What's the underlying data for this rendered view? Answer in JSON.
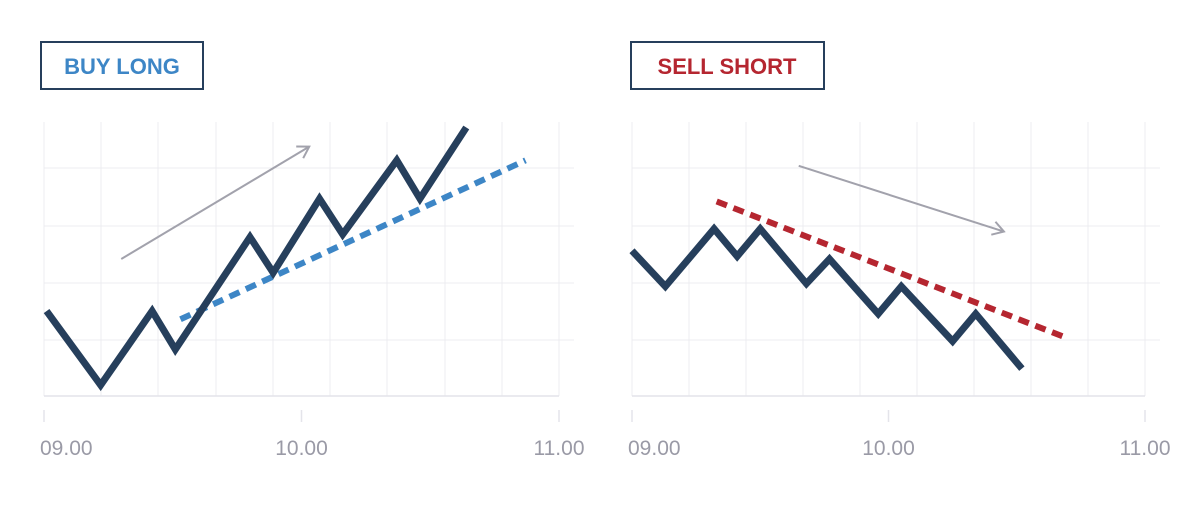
{
  "colors": {
    "price_line": "#263f5c",
    "grid": "#ececf0",
    "axis": "#e4e4ea",
    "tick_text": "#9a9aa6",
    "arrow": "#a2a2ac",
    "box_border": "#263f5c",
    "buy": "#3d86c6",
    "sell": "#b52630"
  },
  "chart_data": [
    {
      "type": "line",
      "title": "BUY LONG",
      "title_color": "#3d86c6",
      "x_ticks": [
        "09.00",
        "10.00",
        "11.00"
      ],
      "xlim": [
        0,
        2
      ],
      "ylim": [
        0,
        1
      ],
      "grid": true,
      "series": [
        {
          "role": "price",
          "color": "#263f5c",
          "style": "solid",
          "points": [
            [
              0.01,
              0.31
            ],
            [
              0.22,
              0.04
            ],
            [
              0.42,
              0.31
            ],
            [
              0.51,
              0.17
            ],
            [
              0.8,
              0.58
            ],
            [
              0.89,
              0.45
            ],
            [
              1.07,
              0.72
            ],
            [
              1.16,
              0.59
            ],
            [
              1.37,
              0.86
            ],
            [
              1.46,
              0.72
            ],
            [
              1.64,
              0.98
            ]
          ]
        },
        {
          "role": "trendline",
          "color": "#3d86c6",
          "style": "dashed",
          "points": [
            [
              0.53,
              0.28
            ],
            [
              1.87,
              0.86
            ]
          ]
        }
      ],
      "arrow": {
        "direction": "up",
        "from": [
          0.3,
          0.5
        ],
        "to": [
          1.03,
          0.91
        ]
      }
    },
    {
      "type": "line",
      "title": "SELL SHORT",
      "title_color": "#b52630",
      "x_ticks": [
        "09.00",
        "10.00",
        "11.00"
      ],
      "xlim": [
        0,
        2
      ],
      "ylim": [
        0,
        1
      ],
      "grid": true,
      "series": [
        {
          "role": "price",
          "color": "#263f5c",
          "style": "solid",
          "points": [
            [
              0.0,
              0.53
            ],
            [
              0.13,
              0.4
            ],
            [
              0.32,
              0.61
            ],
            [
              0.41,
              0.51
            ],
            [
              0.5,
              0.61
            ],
            [
              0.68,
              0.41
            ],
            [
              0.77,
              0.5
            ],
            [
              0.96,
              0.3
            ],
            [
              1.05,
              0.4
            ],
            [
              1.25,
              0.2
            ],
            [
              1.34,
              0.3
            ],
            [
              1.52,
              0.1
            ]
          ]
        },
        {
          "role": "trendline",
          "color": "#b52630",
          "style": "dashed",
          "points": [
            [
              0.33,
              0.71
            ],
            [
              1.7,
              0.21
            ]
          ]
        }
      ],
      "arrow": {
        "direction": "down",
        "from": [
          0.65,
          0.84
        ],
        "to": [
          1.45,
          0.6
        ]
      }
    }
  ]
}
